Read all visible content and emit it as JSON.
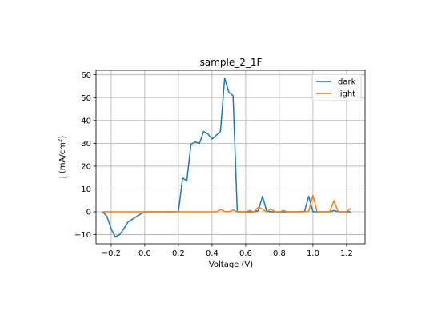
{
  "chart_data": {
    "type": "line",
    "title": "sample_2_1F",
    "xlabel": "Voltage (V)",
    "ylabel_main": "J (mA/cm",
    "ylabel_sup": "2",
    "ylabel_close": ")",
    "xlim": [
      -0.29,
      1.31
    ],
    "ylim": [
      -14,
      62
    ],
    "xticks": [
      -0.2,
      0.0,
      0.2,
      0.4,
      0.6,
      0.8,
      1.0,
      1.2
    ],
    "xtick_labels": [
      "−0.2",
      "0.0",
      "0.2",
      "0.4",
      "0.6",
      "0.8",
      "1.0",
      "1.2"
    ],
    "yticks": [
      -10,
      0,
      10,
      20,
      30,
      40,
      50,
      60
    ],
    "ytick_labels": [
      "−10",
      "0",
      "10",
      "20",
      "30",
      "40",
      "50",
      "60"
    ],
    "grid": true,
    "legend_position": "top-right",
    "series": [
      {
        "name": "dark",
        "color": "#1f77b4",
        "points": [
          [
            -0.25,
            0
          ],
          [
            -0.225,
            -2
          ],
          [
            -0.2,
            -7.5
          ],
          [
            -0.175,
            -11
          ],
          [
            -0.15,
            -10
          ],
          [
            -0.125,
            -7.5
          ],
          [
            -0.1,
            -4.5
          ],
          [
            -0.075,
            -3.3
          ],
          [
            -0.05,
            -2.1
          ],
          [
            -0.025,
            -1
          ],
          [
            0.0,
            0
          ],
          [
            0.025,
            0
          ],
          [
            0.05,
            0
          ],
          [
            0.1,
            0
          ],
          [
            0.15,
            0
          ],
          [
            0.2,
            0.1
          ],
          [
            0.225,
            14.8
          ],
          [
            0.25,
            13.6
          ],
          [
            0.275,
            29.6
          ],
          [
            0.3,
            30.6
          ],
          [
            0.325,
            30
          ],
          [
            0.35,
            35.2
          ],
          [
            0.375,
            34.1
          ],
          [
            0.4,
            31.9
          ],
          [
            0.425,
            33.5
          ],
          [
            0.45,
            35.2
          ],
          [
            0.475,
            58.6
          ],
          [
            0.5,
            52.3
          ],
          [
            0.525,
            50.9
          ],
          [
            0.55,
            0
          ],
          [
            0.6,
            0
          ],
          [
            0.65,
            0
          ],
          [
            0.675,
            0.5
          ],
          [
            0.7,
            6.8
          ],
          [
            0.725,
            0.3
          ],
          [
            0.75,
            0
          ],
          [
            0.8,
            0
          ],
          [
            0.85,
            0
          ],
          [
            0.9,
            0
          ],
          [
            0.95,
            0.2
          ],
          [
            0.975,
            6.8
          ],
          [
            1.0,
            0
          ],
          [
            1.05,
            0
          ],
          [
            1.1,
            0
          ],
          [
            1.125,
            0.6
          ],
          [
            1.15,
            0
          ],
          [
            1.2,
            0
          ],
          [
            1.225,
            0
          ]
        ]
      },
      {
        "name": "light",
        "color": "#ff7f0e",
        "points": [
          [
            -0.25,
            0
          ],
          [
            -0.2,
            0
          ],
          [
            -0.1,
            0
          ],
          [
            0.0,
            0
          ],
          [
            0.1,
            0
          ],
          [
            0.2,
            0
          ],
          [
            0.3,
            0
          ],
          [
            0.4,
            0
          ],
          [
            0.425,
            0
          ],
          [
            0.45,
            1
          ],
          [
            0.475,
            0.2
          ],
          [
            0.5,
            0
          ],
          [
            0.525,
            0.8
          ],
          [
            0.55,
            0
          ],
          [
            0.6,
            0
          ],
          [
            0.625,
            0.6
          ],
          [
            0.65,
            0
          ],
          [
            0.675,
            2
          ],
          [
            0.7,
            1.2
          ],
          [
            0.725,
            0
          ],
          [
            0.75,
            1.3
          ],
          [
            0.775,
            0
          ],
          [
            0.8,
            0
          ],
          [
            0.825,
            0.6
          ],
          [
            0.85,
            0
          ],
          [
            0.9,
            0
          ],
          [
            0.95,
            0
          ],
          [
            0.975,
            0.3
          ],
          [
            1.0,
            7.2
          ],
          [
            1.025,
            0
          ],
          [
            1.05,
            0
          ],
          [
            1.1,
            0
          ],
          [
            1.125,
            4.9
          ],
          [
            1.15,
            0
          ],
          [
            1.2,
            0
          ],
          [
            1.225,
            1.6
          ]
        ]
      }
    ]
  }
}
